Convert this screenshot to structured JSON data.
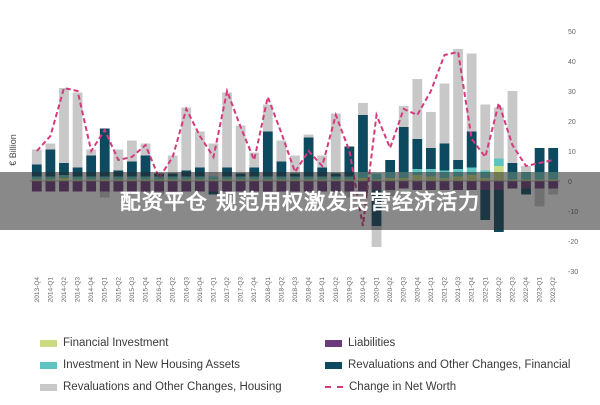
{
  "banner": {
    "text": "配资平仓 规范用权激发民营经济活力"
  },
  "chart_data": {
    "type": "bar",
    "stacked": true,
    "ylabel": "€ Billion",
    "y_axis_side": "right",
    "ylim": [
      -30,
      50
    ],
    "yticks": [
      -30,
      -20,
      -10,
      0,
      10,
      20,
      30,
      40,
      50
    ],
    "grid": false,
    "legend_position": "bottom",
    "categories": [
      "2013-Q4",
      "2014-Q1",
      "2014-Q2",
      "2014-Q3",
      "2014-Q4",
      "2015-Q1",
      "2015-Q2",
      "2015-Q3",
      "2015-Q4",
      "2016-Q1",
      "2016-Q2",
      "2016-Q3",
      "2016-Q4",
      "2017-Q1",
      "2017-Q2",
      "2017-Q3",
      "2017-Q4",
      "2018-Q1",
      "2018-Q2",
      "2018-Q3",
      "2018-Q4",
      "2019-Q1",
      "2019-Q2",
      "2019-Q3",
      "2019-Q4",
      "2020-Q1",
      "2020-Q2",
      "2020-Q3",
      "2020-Q4",
      "2021-Q1",
      "2021-Q2",
      "2021-Q3",
      "2021-Q4",
      "2022-Q1",
      "2022-Q2",
      "2022-Q3",
      "2022-Q4",
      "2023-Q1",
      "2023-Q2"
    ],
    "series": [
      {
        "name": "Financial Investment",
        "type": "bar",
        "color": "#c9dc82",
        "values": [
          0.5,
          0.5,
          1,
          0.5,
          0.5,
          0.5,
          0.5,
          0.5,
          0.5,
          0.5,
          0.5,
          0.5,
          0.5,
          0.5,
          0.5,
          0.5,
          0.5,
          0.5,
          0.5,
          0.5,
          0.5,
          0.5,
          0.5,
          0.5,
          1,
          0.5,
          1,
          1,
          2,
          1.5,
          1,
          1.5,
          2,
          1,
          5,
          0.5,
          0.5,
          0.5,
          0.5
        ]
      },
      {
        "name": "Liabilities",
        "type": "bar",
        "color": "#6b3a7d",
        "values": [
          -3.5,
          -3.5,
          -3.5,
          -3.5,
          -3.5,
          -3.5,
          -3.5,
          -3.5,
          -3.5,
          -3.5,
          -3.5,
          -3.5,
          -3.5,
          -3.5,
          -3.5,
          -3.5,
          -3.5,
          -3.5,
          -3.5,
          -3.5,
          -3.5,
          -3.5,
          -3.5,
          -3.5,
          -4,
          -3,
          -3,
          -2.5,
          -3,
          -3,
          -3,
          -3,
          -3,
          -3,
          -3,
          -2.5,
          -2.5,
          -2.5,
          -2.5
        ]
      },
      {
        "name": "Investment in New Housing Assets",
        "type": "bar",
        "color": "#5ec4bf",
        "values": [
          1,
          1,
          1,
          1,
          1,
          1,
          1,
          1,
          1,
          1,
          1,
          1,
          1,
          1,
          1,
          1,
          1,
          1,
          1,
          1,
          1,
          1,
          1,
          1,
          2,
          2,
          2,
          2,
          2,
          2.5,
          2.5,
          2.5,
          2.5,
          2.5,
          2.5,
          2.5,
          2.5,
          2.5,
          2.5
        ]
      },
      {
        "name": "Revaluations and Other Changes, Financial",
        "type": "bar",
        "color": "#0e4a5f",
        "values": [
          4,
          9,
          4,
          3,
          7,
          16,
          2,
          5,
          7,
          1,
          1,
          2,
          3,
          -1,
          3,
          1,
          3,
          15,
          5,
          1,
          13,
          3,
          1,
          10,
          19,
          -12,
          4,
          15,
          10,
          7,
          9,
          3,
          12,
          -10,
          -14,
          3,
          -2,
          8,
          8
        ]
      },
      {
        "name": "Revaluations and Other Changes, Housing",
        "type": "bar",
        "color": "#c8c8c8",
        "values": [
          5,
          2,
          25,
          25,
          2,
          -2,
          7,
          7,
          4,
          -1,
          6,
          21,
          12,
          11,
          25,
          16,
          5,
          9,
          7,
          6,
          1,
          4,
          20,
          -2,
          4,
          -7,
          -2,
          7,
          20,
          12,
          20,
          37,
          26,
          22,
          17,
          24,
          2,
          -6,
          -2
        ]
      },
      {
        "name": "Change in Net Worth",
        "type": "line",
        "color": "#d63a7e",
        "dashed": true,
        "values": [
          10,
          15,
          31,
          30,
          10,
          17,
          7,
          8,
          12,
          1,
          8,
          24,
          15,
          8,
          30,
          18,
          7,
          28,
          16,
          3,
          10,
          5,
          22,
          10,
          -15,
          22,
          11,
          24,
          22,
          30,
          42,
          43,
          14,
          8,
          26,
          12,
          5,
          6,
          7
        ]
      }
    ]
  }
}
